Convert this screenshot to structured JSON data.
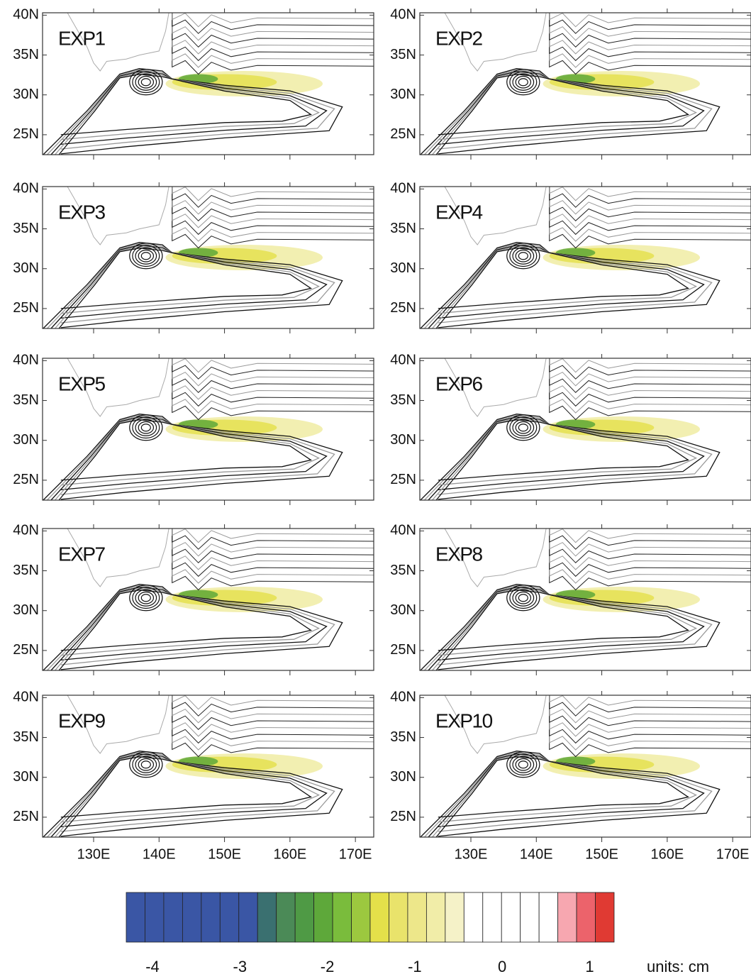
{
  "panels": [
    "EXP1",
    "EXP2",
    "EXP3",
    "EXP4",
    "EXP5",
    "EXP6",
    "EXP7",
    "EXP8",
    "EXP9",
    "EXP10"
  ],
  "lat_range": [
    22.5,
    40.3
  ],
  "lat_ticks": [
    {
      "value": 40,
      "label": "40N"
    },
    {
      "value": 35,
      "label": "35N"
    },
    {
      "value": 30,
      "label": "30N"
    },
    {
      "value": 25,
      "label": "25N"
    }
  ],
  "lon_range": [
    122.2,
    172.8
  ],
  "lon_ticks": [
    {
      "value": 130,
      "label": "130E"
    },
    {
      "value": 140,
      "label": "140E"
    },
    {
      "value": 150,
      "label": "150E"
    },
    {
      "value": 160,
      "label": "160E"
    },
    {
      "value": 170,
      "label": "170E"
    }
  ],
  "colorbar": {
    "colors": [
      "#3a56a5",
      "#3a56a5",
      "#3a56a5",
      "#3a56a5",
      "#3a56a5",
      "#3a56a5",
      "#3a56a5",
      "#3a7070",
      "#4b8a57",
      "#4f9a45",
      "#5ea83a",
      "#7abc3c",
      "#9cc83f",
      "#e4e04a",
      "#e9e36b",
      "#ede78a",
      "#f1eda8",
      "#f5f2c8",
      "#ffffff",
      "#ffffff",
      "#ffffff",
      "#ffffff",
      "#ffffff",
      "#f7a7b0",
      "#ec636b",
      "#e03a33"
    ],
    "range": [
      -4.3,
      1.28
    ],
    "ticks": [
      -4,
      -3,
      -2,
      -1,
      0,
      1
    ],
    "units": "units: cm"
  }
}
